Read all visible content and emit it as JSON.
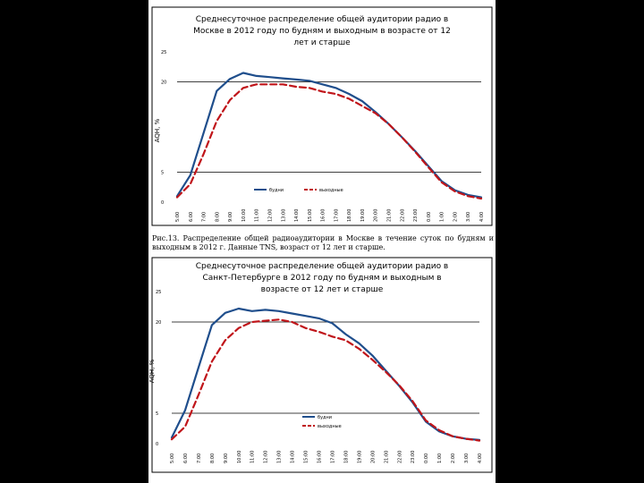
{
  "caption": "Рис.13. Распределение общей радиоаудитории в Москве в течение суток по будням и выходным в 2012 г. Данные TNS, возраст от 12 лет и старше.",
  "chart_data": [
    {
      "type": "line",
      "title": [
        "Среднесуточное распределение общей аудитории радио в",
        "Москве в 2012 году по будням и выходным в возрасте от 12",
        "лет и старше"
      ],
      "xlabel": "",
      "ylabel": "AQH, %",
      "ylim": [
        0,
        25
      ],
      "yticks": [
        0,
        5,
        20,
        25
      ],
      "ytick_labels": [
        "0",
        "5",
        "20",
        "25"
      ],
      "categories": [
        "5:00",
        "6:00",
        "7:00",
        "8:00",
        "9:00",
        "10:00",
        "11:00",
        "12:00",
        "13:00",
        "14:00",
        "15:00",
        "16:00",
        "17:00",
        "18:00",
        "19:00",
        "20:00",
        "21:00",
        "22:00",
        "23:00",
        "0:00",
        "1:00",
        "2:00",
        "3:00",
        "4:00"
      ],
      "series": [
        {
          "name": "будни",
          "values": [
            1.0,
            4.5,
            11.5,
            18.5,
            20.5,
            21.5,
            21.0,
            20.8,
            20.6,
            20.4,
            20.2,
            19.6,
            19.0,
            18.0,
            16.8,
            15.0,
            13.0,
            10.8,
            8.5,
            6.0,
            3.5,
            2.0,
            1.2,
            0.8
          ]
        },
        {
          "name": "выходные",
          "values": [
            0.8,
            3.0,
            8.0,
            13.5,
            17.0,
            19.0,
            19.6,
            19.6,
            19.6,
            19.2,
            19.0,
            18.4,
            18.0,
            17.2,
            16.0,
            14.8,
            13.0,
            10.8,
            8.4,
            5.8,
            3.3,
            1.8,
            1.0,
            0.6
          ]
        }
      ],
      "legend": [
        "будни",
        "выходные"
      ],
      "colors": [
        "#1f4e8c",
        "#c0151a"
      ]
    },
    {
      "type": "line",
      "title": [
        "Среднесуточное распределение общей аудитории радио в",
        "Санкт-Петербурге в 2012 году по будням и выходным в",
        "возрасте от 12 лет и старше"
      ],
      "xlabel": "",
      "ylabel": "AQH, %",
      "ylim": [
        0,
        25
      ],
      "yticks": [
        0,
        5,
        20,
        25
      ],
      "ytick_labels": [
        "0",
        "5",
        "20",
        "25"
      ],
      "categories": [
        "5:00",
        "6:00",
        "7:00",
        "8:00",
        "9:00",
        "10:00",
        "11:00",
        "12:00",
        "13:00",
        "14:00",
        "15:00",
        "16:00",
        "17:00",
        "18:00",
        "19:00",
        "20:00",
        "21:00",
        "22:00",
        "23:00",
        "0:00",
        "1:00",
        "2:00",
        "3:00",
        "4:00"
      ],
      "series": [
        {
          "name": "будни",
          "values": [
            1.0,
            5.5,
            12.5,
            19.5,
            21.5,
            22.2,
            21.8,
            22.0,
            21.8,
            21.4,
            21.0,
            20.6,
            19.8,
            18.0,
            16.5,
            14.5,
            12.0,
            9.5,
            6.8,
            3.6,
            2.0,
            1.2,
            0.8,
            0.6
          ]
        },
        {
          "name": "выходные",
          "values": [
            0.7,
            2.8,
            8.0,
            13.5,
            17.0,
            19.0,
            20.0,
            20.2,
            20.4,
            20.0,
            19.0,
            18.4,
            17.6,
            17.0,
            15.6,
            13.8,
            11.8,
            9.6,
            7.0,
            3.8,
            2.2,
            1.2,
            0.8,
            0.5
          ]
        }
      ],
      "legend": [
        "будни",
        "выходные"
      ],
      "colors": [
        "#1f4e8c",
        "#c0151a"
      ]
    }
  ]
}
